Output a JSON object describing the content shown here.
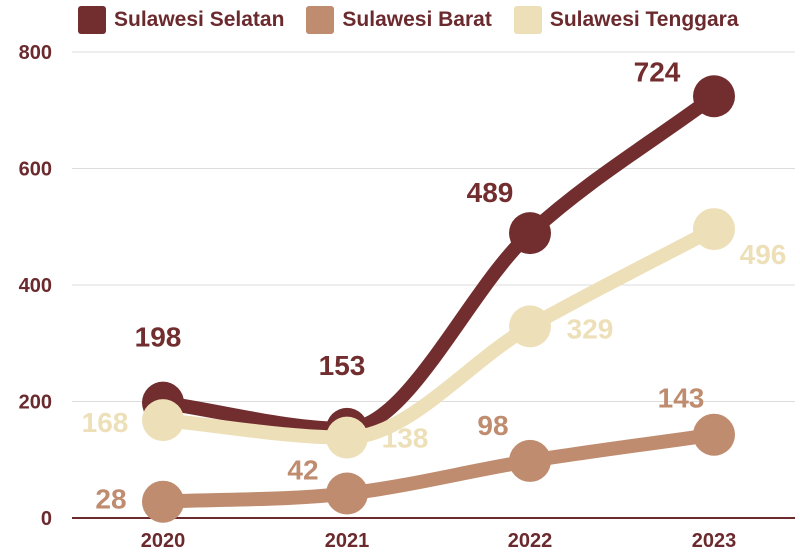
{
  "chart_data": {
    "type": "line",
    "categories": [
      "2020",
      "2021",
      "2022",
      "2023"
    ],
    "series": [
      {
        "name": "Sulawesi Selatan",
        "color": "#722d2f",
        "values": [
          198,
          153,
          489,
          724
        ]
      },
      {
        "name": "Sulawesi Barat",
        "color": "#bf8c6f",
        "values": [
          28,
          42,
          98,
          143
        ]
      },
      {
        "name": "Sulawesi Tenggara",
        "color": "#ede0b9",
        "values": [
          168,
          138,
          329,
          496
        ]
      }
    ],
    "yticks": [
      0,
      200,
      400,
      600,
      800
    ],
    "ylim": [
      0,
      800
    ],
    "grid": true,
    "legend": "top",
    "text_color": "#6b2a2e"
  }
}
